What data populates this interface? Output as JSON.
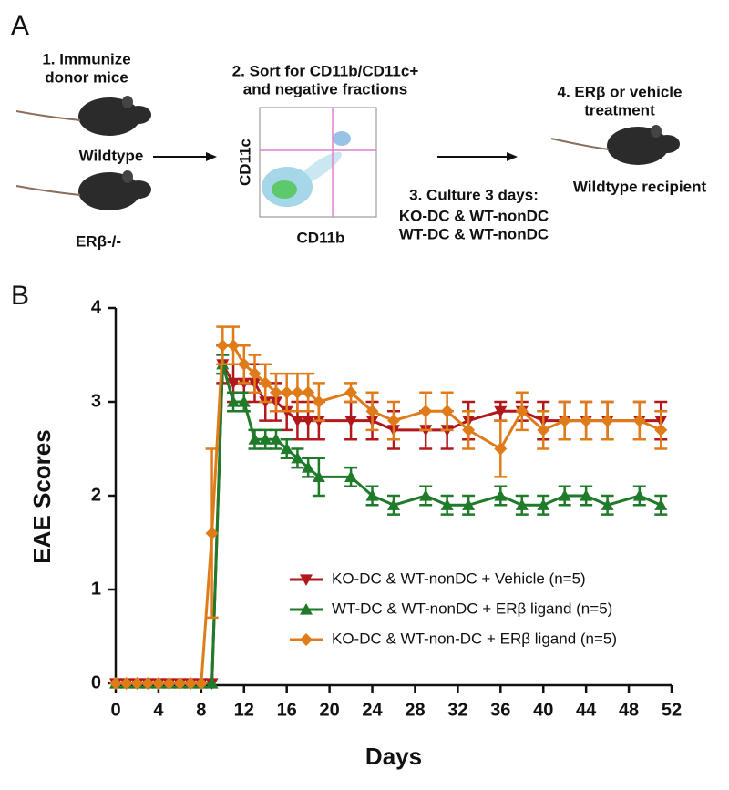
{
  "panel_a": {
    "letter": "A",
    "step1": [
      "1.  Immunize",
      "donor mice"
    ],
    "wildtype": "Wildtype",
    "knockout": "ERβ-/-",
    "step2": [
      "2.  Sort for CD11b/CD11c+",
      "and negative fractions"
    ],
    "flow_y_label": "CD11c",
    "flow_x_label": "CD11b",
    "step3": [
      "3. Culture 3 days:",
      "KO-DC & WT-nonDC",
      "WT-DC & WT-nonDC"
    ],
    "step4": [
      "4. ERβ or vehicle",
      "treatment"
    ],
    "recipient": "Wildtype recipient"
  },
  "chart_data": {
    "type": "line",
    "panel_letter": "B",
    "xlabel": "Days",
    "ylabel": "EAE Scores",
    "xlim": [
      0,
      52
    ],
    "xticks": [
      0,
      4,
      8,
      12,
      16,
      20,
      24,
      28,
      32,
      36,
      40,
      44,
      48,
      52
    ],
    "ylim": [
      0,
      4
    ],
    "yticks": [
      0,
      1,
      2,
      3,
      4
    ],
    "legend": "center right",
    "x": [
      0,
      1,
      2,
      3,
      4,
      5,
      6,
      7,
      8,
      9,
      10,
      11,
      12,
      13,
      14,
      15,
      16,
      17,
      18,
      19,
      22,
      24,
      26,
      29,
      31,
      33,
      36,
      38,
      40,
      42,
      44,
      46,
      49,
      51
    ],
    "series": [
      {
        "name": "KO-DC & WT-nonDC + Vehicle (n=5)",
        "color": "#b0181c",
        "marker": "triangle-down",
        "values": [
          0,
          0,
          0,
          0,
          0,
          0,
          0,
          0,
          0,
          0,
          3.4,
          3.2,
          3.2,
          3.2,
          3.0,
          3.0,
          2.9,
          2.8,
          2.8,
          2.8,
          2.8,
          2.8,
          2.7,
          2.7,
          2.7,
          2.8,
          2.9,
          2.9,
          2.8,
          2.8,
          2.8,
          2.8,
          2.8,
          2.8
        ],
        "errors": [
          0,
          0,
          0,
          0,
          0,
          0,
          0,
          0,
          0,
          0,
          0.2,
          0.2,
          0.2,
          0.2,
          0.2,
          0.2,
          0.2,
          0.2,
          0.2,
          0.2,
          0.2,
          0.2,
          0.2,
          0.2,
          0.2,
          0.2,
          0.1,
          0.1,
          0.2,
          0.2,
          0.2,
          0.2,
          0.2,
          0.2
        ]
      },
      {
        "name": "WT-DC & WT-nonDC + ERβ ligand (n=5)",
        "color": "#1f7a2a",
        "marker": "triangle-up",
        "values": [
          0,
          0,
          0,
          0,
          0,
          0,
          0,
          0,
          0,
          0,
          3.4,
          3.0,
          3.0,
          2.6,
          2.6,
          2.6,
          2.5,
          2.4,
          2.3,
          2.2,
          2.2,
          2.0,
          1.9,
          2.0,
          1.9,
          1.9,
          2.0,
          1.9,
          1.9,
          2.0,
          2.0,
          1.9,
          2.0,
          1.9
        ],
        "errors": [
          0,
          0,
          0,
          0,
          0,
          0,
          0,
          0,
          0,
          0,
          0.1,
          0.1,
          0.1,
          0.1,
          0.1,
          0.1,
          0.1,
          0.1,
          0.1,
          0.2,
          0.1,
          0.1,
          0.1,
          0.1,
          0.1,
          0.1,
          0.1,
          0.1,
          0.1,
          0.1,
          0.1,
          0.1,
          0.1,
          0.1
        ]
      },
      {
        "name": "KO-DC & WT-non-DC + ERβ ligand (n=5)",
        "color": "#e07b1a",
        "marker": "diamond",
        "values": [
          0,
          0,
          0,
          0,
          0,
          0,
          0,
          0,
          0,
          1.6,
          3.6,
          3.6,
          3.4,
          3.3,
          3.2,
          3.1,
          3.1,
          3.1,
          3.1,
          3.0,
          3.1,
          2.9,
          2.8,
          2.9,
          2.9,
          2.7,
          2.5,
          2.9,
          2.7,
          2.8,
          2.8,
          2.8,
          2.8,
          2.7
        ],
        "errors": [
          0,
          0,
          0,
          0,
          0,
          0,
          0,
          0,
          0,
          0.9,
          0.2,
          0.2,
          0.2,
          0.2,
          0.2,
          0.2,
          0.2,
          0.2,
          0.2,
          0.2,
          0.1,
          0.2,
          0.2,
          0.2,
          0.2,
          0.2,
          0.3,
          0.2,
          0.2,
          0.2,
          0.2,
          0.2,
          0.2,
          0.2
        ]
      }
    ]
  }
}
